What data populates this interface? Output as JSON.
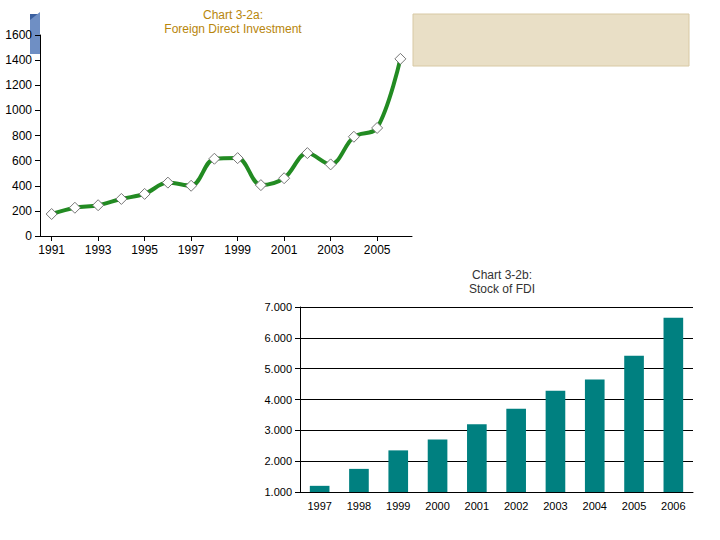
{
  "chart_data": [
    {
      "type": "line",
      "title": "Chart 3-2a:",
      "subtitle": "Foreign Direct Investment",
      "x": [
        1991,
        1992,
        1993,
        1994,
        1995,
        1996,
        1997,
        1998,
        1999,
        2000,
        2001,
        2002,
        2003,
        2004,
        2005,
        2006
      ],
      "values": [
        175,
        225,
        245,
        295,
        335,
        425,
        400,
        615,
        620,
        405,
        460,
        660,
        570,
        790,
        860,
        1410
      ],
      "color": "#228b22",
      "marker": "diamond",
      "line_style": "solid",
      "xlim": [
        1990.5,
        2006.5
      ],
      "xticks": [
        1991,
        1993,
        1995,
        1997,
        1999,
        2001,
        2003,
        2005
      ],
      "ylim": [
        0,
        1600
      ],
      "yticks": [
        0,
        200,
        400,
        600,
        800,
        1000,
        1200,
        1400,
        1600
      ],
      "grid": false
    },
    {
      "type": "bar",
      "title": "Chart 3-2b:",
      "subtitle": "Stock of FDI",
      "categories": [
        "1997",
        "1998",
        "1999",
        "2000",
        "2001",
        "2002",
        "2003",
        "2004",
        "2005",
        "2006"
      ],
      "values": [
        1200,
        1750,
        2350,
        2700,
        3200,
        3700,
        4280,
        4650,
        5420,
        6650
      ],
      "color": "#008080",
      "ylim": [
        1000,
        7000
      ],
      "yticks": [
        {
          "value": 1000,
          "label": "1.000"
        },
        {
          "value": 2000,
          "label": "2.000"
        },
        {
          "value": 3000,
          "label": "3.000"
        },
        {
          "value": 4000,
          "label": "4.000"
        },
        {
          "value": 5000,
          "label": "5.000"
        },
        {
          "value": 6000,
          "label": "6.000"
        },
        {
          "value": 7000,
          "label": "7.000"
        }
      ],
      "grid": true
    }
  ]
}
